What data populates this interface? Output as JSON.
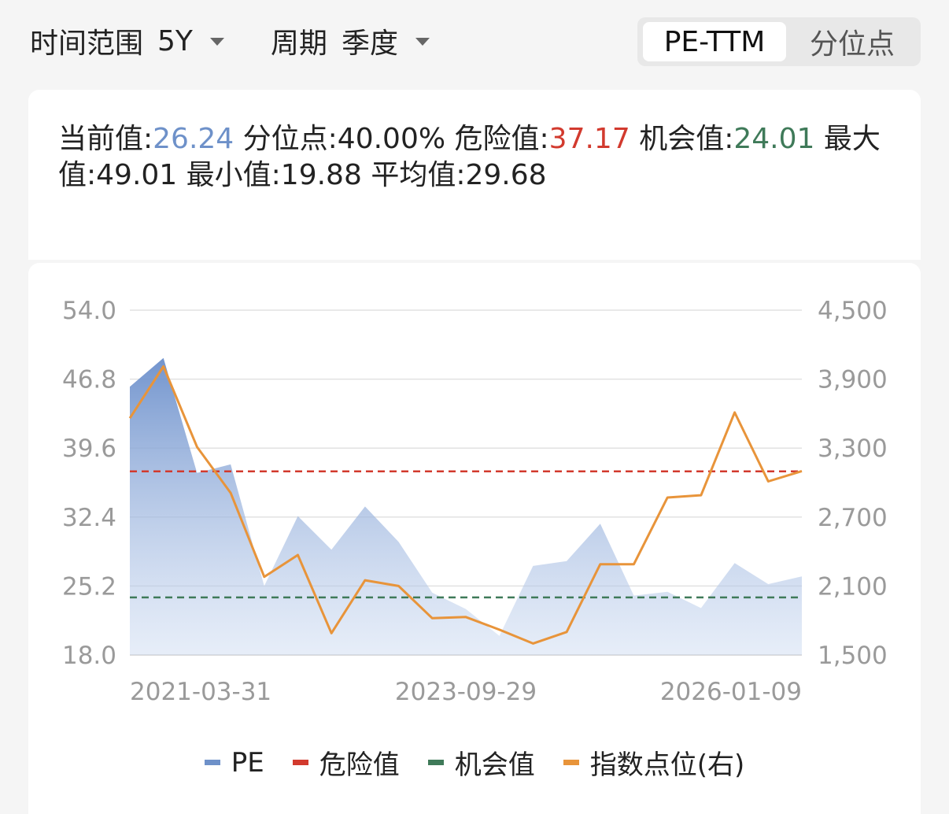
{
  "filters": {
    "range_label": "时间范围",
    "range_value": "5Y",
    "period_label": "周期",
    "period_value": "季度"
  },
  "segments": {
    "active": "PE-TTM",
    "inactive": "分位点"
  },
  "stats": {
    "current_label": "当前值:",
    "current_value": "26.24",
    "percentile_label": "分位点:",
    "percentile_value": "40.00%",
    "danger_label": "危险值:",
    "danger_value": "37.17",
    "chance_label": "机会值:",
    "chance_value": "24.01",
    "max_label": "最大值:",
    "max_value": "49.01",
    "min_label": "最小值:",
    "min_value": "19.88",
    "avg_label": "平均值:",
    "avg_value": "29.68"
  },
  "colors": {
    "pe": "#6e91c9",
    "danger": "#d23a2e",
    "chance": "#3f7a59",
    "index": "#e8943a"
  },
  "legend": [
    "PE",
    "危险值",
    "机会值",
    "指数点位(右)"
  ],
  "chart_data": {
    "type": "area",
    "x_tick_labels": [
      "2021-03-31",
      "2023-09-29",
      "2026-01-09"
    ],
    "y_left_ticks": [
      "54.0",
      "46.8",
      "39.6",
      "32.4",
      "25.2",
      "18.0"
    ],
    "y_right_ticks": [
      "4,500",
      "3,900",
      "3,300",
      "2,700",
      "2,100",
      "1,500"
    ],
    "ylim_left": [
      18.0,
      54.0
    ],
    "ylim_right": [
      1500,
      4500
    ],
    "grid": true,
    "legend_position": "bottom",
    "danger_value": 37.17,
    "chance_value": 24.01,
    "series": [
      {
        "name": "PE",
        "axis": "left",
        "values": [
          46.0,
          49.0,
          37.0,
          37.9,
          25.2,
          32.5,
          29.0,
          33.5,
          29.8,
          24.5,
          22.8,
          20.0,
          27.3,
          27.8,
          31.7,
          24.2,
          24.6,
          22.9,
          27.6,
          25.4,
          26.2
        ]
      },
      {
        "name": "危险值",
        "axis": "left",
        "values": [
          37.17,
          37.17,
          37.17,
          37.17,
          37.17,
          37.17,
          37.17,
          37.17,
          37.17,
          37.17,
          37.17,
          37.17,
          37.17,
          37.17,
          37.17,
          37.17,
          37.17,
          37.17,
          37.17,
          37.17,
          37.17
        ]
      },
      {
        "name": "机会值",
        "axis": "left",
        "values": [
          24.01,
          24.01,
          24.01,
          24.01,
          24.01,
          24.01,
          24.01,
          24.01,
          24.01,
          24.01,
          24.01,
          24.01,
          24.01,
          24.01,
          24.01,
          24.01,
          24.01,
          24.01,
          24.01,
          24.01,
          24.01
        ]
      },
      {
        "name": "指数点位(右)",
        "axis": "right",
        "values": [
          3560,
          4010,
          3310,
          2910,
          2180,
          2370,
          1690,
          2150,
          2100,
          1820,
          1830,
          1720,
          1600,
          1700,
          2290,
          2290,
          2870,
          2890,
          3610,
          3010,
          3100
        ]
      }
    ]
  }
}
